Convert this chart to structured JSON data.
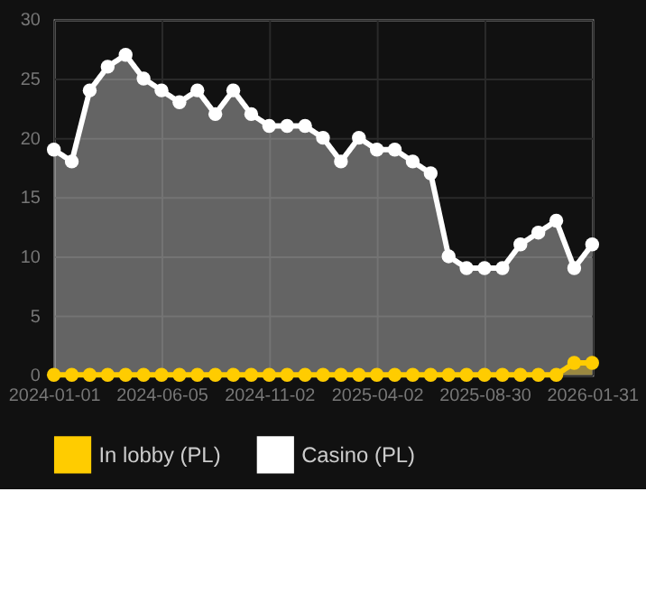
{
  "chart_data": {
    "type": "area",
    "categories": [
      "2024-01-01",
      null,
      null,
      null,
      null,
      null,
      "2024-06-05",
      null,
      null,
      null,
      null,
      null,
      "2024-11-02",
      null,
      null,
      null,
      null,
      null,
      "2025-04-02",
      null,
      null,
      null,
      null,
      null,
      "2025-08-30",
      null,
      null,
      null,
      null,
      null,
      "2026-01-31"
    ],
    "series": [
      {
        "name": "In lobby (PL)",
        "color": "#ffcc00",
        "values": [
          0,
          0,
          0,
          0,
          0,
          0,
          0,
          0,
          0,
          0,
          0,
          0,
          0,
          0,
          0,
          0,
          0,
          0,
          0,
          0,
          0,
          0,
          0,
          0,
          0,
          0,
          0,
          0,
          0,
          1,
          1
        ]
      },
      {
        "name": "Casino (PL)",
        "color": "#ffffff",
        "values": [
          19,
          18,
          24,
          26,
          27,
          25,
          24,
          23,
          24,
          22,
          24,
          22,
          21,
          21,
          21,
          20,
          18,
          20,
          19,
          19,
          18,
          17,
          10,
          9,
          9,
          9,
          11,
          12,
          13,
          9,
          11
        ]
      }
    ],
    "ylim": [
      0,
      30
    ],
    "yticks": [
      0,
      5,
      10,
      15,
      20,
      25,
      30
    ],
    "grid": true,
    "legend": "bottom",
    "marker": "circle",
    "line_style": "solid"
  }
}
